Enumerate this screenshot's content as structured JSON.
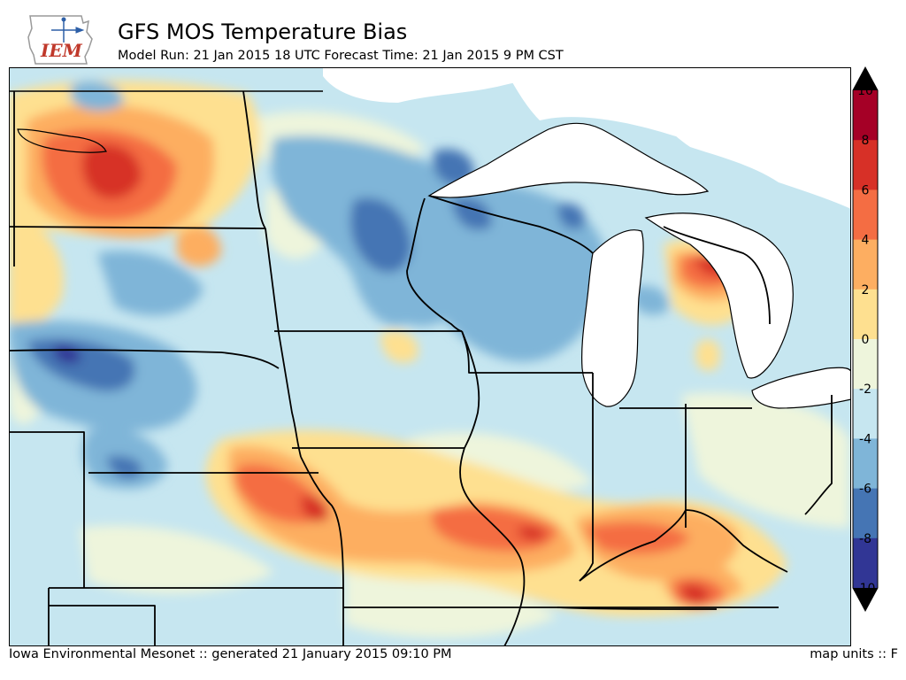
{
  "title": "GFS MOS Temperature Bias",
  "subtitle": "Model Run: 21 Jan 2015 18 UTC Forecast Time: 21 Jan 2015 9 PM CST",
  "logo": {
    "text": "IEM"
  },
  "footer": {
    "credit": "Iowa Environmental Mesonet :: generated 21 January 2015 09:10 PM",
    "units": "map units :: F"
  },
  "colorbar": {
    "levels": [
      "10",
      "8",
      "6",
      "4",
      "2",
      "0",
      "-2",
      "-4",
      "-6",
      "-8",
      "-10"
    ],
    "colors": [
      "#a50026",
      "#d73027",
      "#f46d43",
      "#fdae61",
      "#fee090",
      "#eef5dc",
      "#c6e6f0",
      "#7fb5d8",
      "#4575b4",
      "#313695"
    ],
    "over_color": "#000000",
    "under_color": "#000000"
  },
  "colors": {
    "water": "#ffffff",
    "state_border": "#000000"
  }
}
